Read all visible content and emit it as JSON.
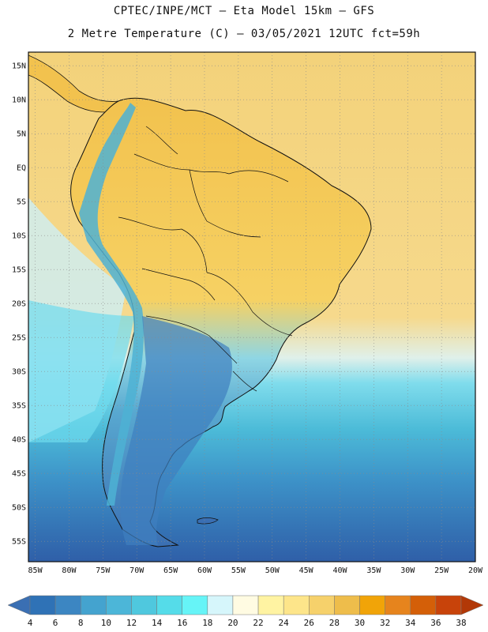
{
  "header": {
    "line1": "CPTEC/INPE/MCT –  Eta Model 15km – GFS",
    "line2": "2 Metre Temperature (C) – 03/05/2021 12UTC fct=59h"
  },
  "axes": {
    "lat_labels": [
      "15N",
      "10N",
      "5N",
      "EQ",
      "5S",
      "10S",
      "15S",
      "20S",
      "25S",
      "30S",
      "35S",
      "40S",
      "45S",
      "50S",
      "55S"
    ],
    "lon_labels": [
      "85W",
      "80W",
      "75W",
      "70W",
      "65W",
      "60W",
      "55W",
      "50W",
      "45W",
      "40W",
      "35W",
      "30W",
      "25W",
      "20W"
    ],
    "lat_range": [
      -58,
      17
    ],
    "lon_range": [
      -86,
      -20
    ],
    "grid": "on"
  },
  "colorbar": {
    "labels": [
      "4",
      "6",
      "8",
      "10",
      "12",
      "14",
      "16",
      "18",
      "20",
      "22",
      "24",
      "26",
      "28",
      "30",
      "32",
      "34",
      "36",
      "38"
    ],
    "colors": [
      "#3a6fb3",
      "#2f72b6",
      "#3c86c2",
      "#44a3cf",
      "#4cb6d8",
      "#4fc8de",
      "#55dce9",
      "#66f4f7",
      "#d6f6fb",
      "#fffbe2",
      "#fff3a2",
      "#fde58a",
      "#f6d16b",
      "#eebd4b",
      "#f1a408",
      "#e6841d",
      "#d45f08",
      "#c8430a",
      "#b23807"
    ]
  },
  "map_colors": {
    "ocean_cold": "#2f5fa8",
    "ocean_mid": "#3d92c8",
    "ocean_cool": "#4cbbd8",
    "ocean_light": "#6fdcee",
    "ocean_pale": "#cdeff6",
    "ocean_warm": "#f6d68a",
    "land_warm": "#f2c24e",
    "land_mid": "#f6d163",
    "land_south": "#58a8d0",
    "andes": "#4db2d4",
    "border": "#111111"
  }
}
